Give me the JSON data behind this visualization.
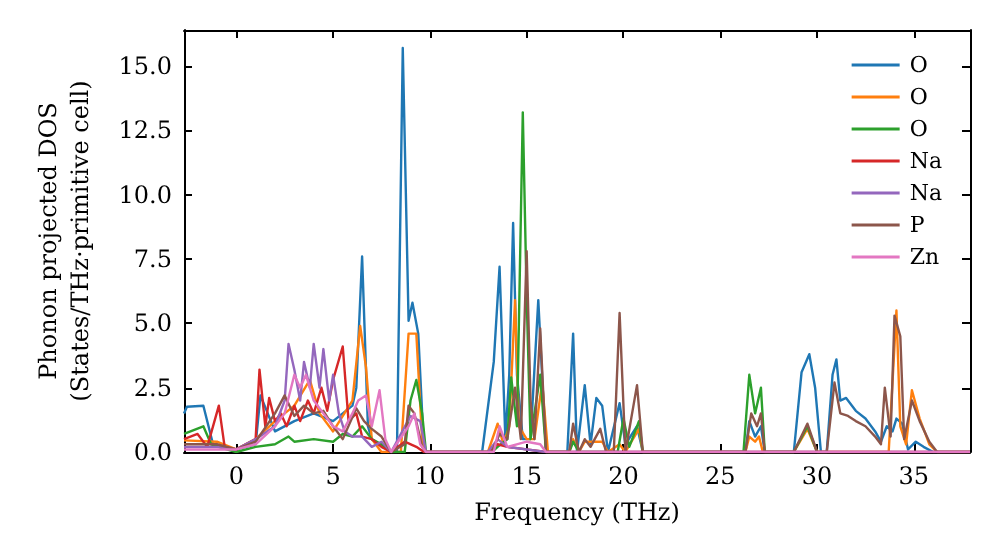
{
  "chart_data": {
    "type": "line",
    "xlabel": "Frequency (THz)",
    "ylabel": "Phonon projected DOS\n(States/THz·primitive cell)",
    "xlim": [
      -2.7,
      37.9
    ],
    "ylim": [
      0,
      16.4
    ],
    "xticks": [
      0,
      5,
      10,
      15,
      20,
      25,
      30,
      35
    ],
    "yticks": [
      {
        "value": 0,
        "label": "0.0"
      },
      {
        "value": 2.5,
        "label": "2.5"
      },
      {
        "value": 5,
        "label": "5.0"
      },
      {
        "value": 7.5,
        "label": "7.5"
      },
      {
        "value": 10,
        "label": "10.0"
      },
      {
        "value": 12.5,
        "label": "12.5"
      },
      {
        "value": 15,
        "label": "15.0"
      }
    ],
    "legend": "top right",
    "grid": false,
    "marker": "none",
    "line_style": "solid",
    "series": [
      {
        "name": "O",
        "color": "#1f77b4",
        "x": [
          -2.7,
          -2.55,
          -1.7,
          -1.2,
          -0.5,
          0,
          1,
          1.25,
          2,
          3,
          4,
          5,
          6,
          6.2,
          6.5,
          6.8,
          7,
          8,
          8.3,
          8.6,
          8.9,
          9.1,
          9.4,
          9.7,
          12.7,
          13.3,
          13.6,
          13.9,
          14.1,
          14.3,
          14.5,
          14.8,
          15.2,
          15.6,
          16,
          17.1,
          17.4,
          17.6,
          18,
          18.3,
          18.6,
          18.9,
          19.2,
          19.8,
          20.1,
          20.7,
          21,
          26.3,
          26.5,
          26.8,
          27.1,
          27.3,
          28.8,
          29.2,
          29.6,
          29.9,
          30.2,
          30.5,
          30.8,
          31,
          31.2,
          31.5,
          32,
          32.5,
          33,
          33.3,
          33.6,
          33.9,
          34.1,
          34.4,
          34.7,
          35.1,
          35.5,
          36,
          37.9
        ],
        "values": [
          1.5,
          1.76,
          1.8,
          0.3,
          0.2,
          0.1,
          0.3,
          2.2,
          0.8,
          1.2,
          1.5,
          1.2,
          1.8,
          2.5,
          7.6,
          1,
          0.5,
          0,
          0,
          15.7,
          5.1,
          5.8,
          4.6,
          0,
          0,
          3.5,
          7.2,
          0.5,
          3,
          8.9,
          3,
          0.5,
          0.5,
          5.9,
          0,
          0,
          4.6,
          0,
          2.6,
          0.3,
          2.1,
          1.8,
          0,
          1.9,
          0.3,
          1,
          0,
          0,
          1.2,
          0.6,
          1,
          0,
          0,
          3.1,
          3.8,
          2.5,
          0,
          0,
          3,
          3.6,
          2,
          2.1,
          1.6,
          1.3,
          0.8,
          0.4,
          1,
          0.8,
          1.3,
          1.1,
          0.1,
          0.4,
          0.2,
          0,
          0
        ]
      },
      {
        "name": "O",
        "color": "#ff7f0e",
        "x": [
          -2.7,
          -1,
          0,
          1,
          2,
          3,
          3.8,
          4.3,
          5,
          6,
          6.4,
          6.7,
          7,
          7.5,
          8.5,
          8.9,
          9.3,
          9.6,
          9.8,
          13,
          13.5,
          13.8,
          14.1,
          14.4,
          14.6,
          15,
          15.4,
          15.8,
          16.1,
          17.2,
          17.4,
          17.7,
          18,
          18.9,
          19.2,
          19.8,
          20.1,
          20.8,
          21,
          26.3,
          26.5,
          26.8,
          27,
          27.2,
          28.8,
          29.5,
          30,
          33.7,
          34.1,
          34.3,
          34.6,
          34.9,
          35.3,
          35.8,
          36.2,
          37.9
        ],
        "values": [
          0.45,
          0.4,
          0.1,
          0.5,
          1.2,
          1.8,
          2.8,
          1.5,
          0.8,
          2,
          4.9,
          3.3,
          0.5,
          0,
          0,
          4.6,
          4.6,
          0.5,
          0,
          0,
          1.1,
          0.3,
          1,
          5.9,
          1,
          0.5,
          0.5,
          2.7,
          0,
          0,
          0.5,
          0,
          0.4,
          0.4,
          0,
          0.3,
          0,
          0.9,
          0,
          0,
          0.6,
          0.4,
          0.6,
          0,
          0,
          0.9,
          0,
          0,
          5.5,
          1,
          0.3,
          2.4,
          1.3,
          0.3,
          0,
          0
        ]
      },
      {
        "name": "O",
        "color": "#2ca02c",
        "x": [
          -2.7,
          -1.7,
          -1.3,
          -0.5,
          0,
          1,
          2,
          2.7,
          3,
          4,
          5,
          5.5,
          6,
          6.5,
          7,
          7.5,
          8,
          8.7,
          9,
          9.3,
          9.6,
          9.8,
          13.2,
          13.5,
          14,
          14.2,
          14.5,
          14.8,
          15,
          15.2,
          15.7,
          16,
          17.2,
          17.4,
          17.7,
          19.7,
          20,
          20.3,
          20.8,
          21,
          26.2,
          26.5,
          26.8,
          27.1,
          27.3,
          28.8,
          29.5,
          30
        ],
        "values": [
          0.7,
          1,
          0.3,
          0.1,
          0,
          0.2,
          0.3,
          0.6,
          0.4,
          0.5,
          0.4,
          0.7,
          0.6,
          1,
          0.5,
          0.3,
          0,
          0,
          2,
          2.8,
          1.5,
          0,
          0,
          0.2,
          0.5,
          2.9,
          1,
          13.2,
          6,
          0.5,
          3,
          0,
          0,
          0.4,
          0,
          0,
          1.3,
          0.2,
          1.2,
          0,
          0,
          3,
          1.5,
          2.5,
          0,
          0,
          1,
          0
        ]
      },
      {
        "name": "Na",
        "color": "#d62728",
        "x": [
          -2.7,
          -2,
          -1.5,
          -0.9,
          -0.6,
          0,
          1,
          1.2,
          1.5,
          1.7,
          2,
          2.3,
          2.6,
          3,
          3.3,
          3.7,
          4,
          4.4,
          4.7,
          5,
          5.5,
          5.8,
          6.2,
          6.5,
          7,
          7.5,
          8,
          8.7,
          9.3,
          9.7,
          13,
          13.5,
          14,
          15,
          16,
          37.9
        ],
        "values": [
          0.5,
          0.7,
          0.2,
          1.8,
          0.2,
          0.1,
          0.5,
          3.2,
          1,
          2.1,
          1.2,
          1.5,
          1,
          1.8,
          1.2,
          2,
          1.5,
          2.5,
          1.6,
          2.8,
          4.1,
          1.2,
          1.5,
          0.6,
          0.5,
          0.2,
          0,
          0.4,
          0.2,
          0,
          0,
          0.3,
          0.2,
          0.1,
          0,
          0
        ]
      },
      {
        "name": "Na",
        "color": "#9467bd",
        "x": [
          -2.7,
          -1,
          0,
          1,
          2,
          2.5,
          2.7,
          3,
          3.3,
          3.5,
          3.8,
          4,
          4.3,
          4.5,
          4.8,
          5,
          5.3,
          5.6,
          6,
          6.5,
          7,
          7.5,
          8,
          9,
          9.5,
          9.8,
          13,
          13.5,
          14,
          16,
          37.9
        ],
        "values": [
          0.2,
          0.2,
          0.1,
          0.5,
          1,
          2,
          4.2,
          3.2,
          2,
          3.5,
          2.5,
          4.2,
          2.5,
          4,
          2,
          3,
          1.5,
          0.8,
          0.6,
          0.6,
          0.2,
          0.4,
          0,
          1.4,
          1.2,
          0,
          0,
          0.5,
          0.2,
          0,
          0
        ]
      },
      {
        "name": "P",
        "color": "#8c564b",
        "x": [
          -2.7,
          -1,
          0,
          1,
          2,
          2.5,
          3,
          3.5,
          4,
          4.5,
          5,
          5.5,
          6.2,
          6.6,
          7,
          7.5,
          8,
          8.7,
          8.9,
          9.2,
          9.6,
          9.8,
          13.2,
          13.6,
          14,
          14.4,
          14.7,
          15,
          15.2,
          15.4,
          15.7,
          16,
          17.2,
          17.4,
          17.7,
          18,
          18.3,
          18.8,
          19.1,
          19.5,
          19.8,
          20.1,
          20.7,
          21,
          26.3,
          26.6,
          26.9,
          27.1,
          27.3,
          28.8,
          29.5,
          30,
          30.5,
          30.9,
          31.2,
          31.6,
          32,
          32.5,
          33,
          33.3,
          33.5,
          33.8,
          34,
          34.3,
          34.5,
          34.9,
          35.3,
          35.8,
          36.2,
          37.9
        ],
        "values": [
          0.3,
          0.3,
          0.1,
          0.4,
          1.5,
          2.2,
          1.4,
          1.8,
          1.5,
          1.6,
          1,
          0.5,
          1.7,
          1.2,
          0.9,
          0.6,
          0,
          0.3,
          1.8,
          1.5,
          0.2,
          0,
          0,
          0.7,
          0.5,
          2.5,
          0.5,
          7.8,
          2,
          0.5,
          4.8,
          0,
          0,
          1.1,
          0,
          0.5,
          0.2,
          0.9,
          0,
          0,
          5.4,
          0,
          2.6,
          0,
          0,
          1.5,
          1,
          1.5,
          0,
          0,
          1.1,
          0,
          0,
          2.7,
          1.5,
          1.4,
          1.2,
          1,
          0.6,
          0.3,
          2.5,
          0.6,
          5.3,
          4.5,
          0.5,
          2,
          1.2,
          0.4,
          0,
          0
        ]
      },
      {
        "name": "Zn",
        "color": "#e377c2",
        "x": [
          -2.7,
          0,
          1,
          2,
          2.5,
          3,
          3.3,
          3.6,
          4,
          4.5,
          5,
          5.5,
          6,
          6.3,
          6.7,
          7,
          7.4,
          7.7,
          8,
          8.9,
          9.2,
          9.5,
          9.8,
          13.3,
          13.6,
          14,
          15,
          15.7,
          16,
          37.9
        ],
        "values": [
          0.1,
          0.1,
          0.3,
          1,
          1.5,
          3,
          2.5,
          3,
          2,
          1.5,
          1,
          0.8,
          1.5,
          2,
          2.2,
          1,
          2.4,
          0.5,
          0,
          1,
          1.5,
          0.3,
          0,
          0,
          1,
          0.2,
          0.4,
          0.3,
          0,
          0
        ]
      }
    ]
  }
}
